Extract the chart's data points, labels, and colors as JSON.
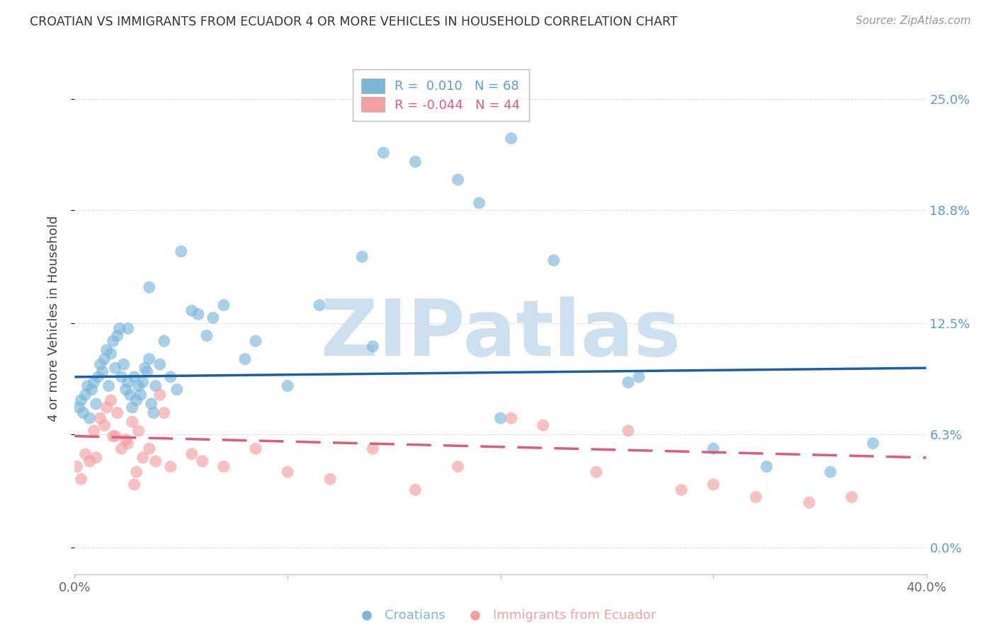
{
  "title": "CROATIAN VS IMMIGRANTS FROM ECUADOR 4 OR MORE VEHICLES IN HOUSEHOLD CORRELATION CHART",
  "source": "Source: ZipAtlas.com",
  "ylabel": "4 or more Vehicles in Household",
  "xlim": [
    0.0,
    40.0
  ],
  "ylim": [
    -1.5,
    27.0
  ],
  "ytick_vals": [
    0.0,
    6.3,
    12.5,
    18.8,
    25.0
  ],
  "ytick_labels_right": [
    "0.0%",
    "6.3%",
    "12.5%",
    "18.8%",
    "25.0%"
  ],
  "xtick_vals": [
    0,
    10,
    20,
    30,
    40
  ],
  "xtick_labels": [
    "0.0%",
    "",
    "",
    "",
    "40.0%"
  ],
  "scatter_blue_color": "#7ab8d9",
  "scatter_pink_color": "#f4a0a0",
  "line_blue_color": "#1a5fa8",
  "line_pink_color": "#e05a7a",
  "right_label_color": "#5b9bd5",
  "watermark_color": "#cce0f0",
  "title_color": "#333333",
  "source_color": "#999999",
  "grid_color": "#dddddd",
  "legend_blue_label": "R =  0.010   N = 68",
  "legend_pink_label": "R = -0.044   N = 44",
  "bottom_legend_croatians": "Croatians",
  "bottom_legend_ecuador": "Immigrants from Ecuador",
  "blue_x": [
    0.2,
    0.3,
    0.4,
    0.5,
    0.6,
    0.7,
    0.8,
    0.9,
    1.0,
    1.1,
    1.2,
    1.3,
    1.4,
    1.5,
    1.6,
    1.7,
    1.8,
    1.9,
    2.0,
    2.1,
    2.2,
    2.3,
    2.4,
    2.5,
    2.6,
    2.7,
    2.8,
    2.9,
    3.0,
    3.1,
    3.2,
    3.3,
    3.4,
    3.5,
    3.6,
    3.7,
    3.8,
    4.0,
    4.2,
    4.5,
    5.0,
    5.5,
    6.5,
    7.0,
    8.5,
    10.0,
    11.5,
    13.5,
    14.5,
    16.0,
    18.0,
    19.0,
    20.5,
    22.5,
    26.0,
    30.0,
    32.5,
    35.5,
    37.5,
    20.0,
    26.5,
    14.0,
    8.0,
    3.5,
    4.8,
    2.5,
    5.8,
    6.2
  ],
  "blue_y": [
    7.8,
    8.2,
    7.5,
    8.5,
    9.0,
    7.2,
    8.8,
    9.2,
    8.0,
    9.5,
    10.2,
    9.8,
    10.5,
    11.0,
    9.0,
    10.8,
    11.5,
    10.0,
    11.8,
    12.2,
    9.5,
    10.2,
    8.8,
    9.2,
    8.5,
    7.8,
    9.5,
    8.2,
    9.0,
    8.5,
    9.2,
    10.0,
    9.8,
    10.5,
    8.0,
    7.5,
    9.0,
    10.2,
    11.5,
    9.5,
    16.5,
    13.2,
    12.8,
    13.5,
    11.5,
    9.0,
    13.5,
    16.2,
    22.0,
    21.5,
    20.5,
    19.2,
    22.8,
    16.0,
    9.2,
    5.5,
    4.5,
    4.2,
    5.8,
    7.2,
    9.5,
    11.2,
    10.5,
    14.5,
    8.8,
    12.2,
    13.0,
    11.8
  ],
  "pink_x": [
    0.1,
    0.3,
    0.5,
    0.7,
    0.9,
    1.0,
    1.2,
    1.4,
    1.5,
    1.7,
    1.9,
    2.0,
    2.2,
    2.4,
    2.5,
    2.7,
    2.9,
    3.0,
    3.2,
    3.5,
    3.8,
    4.0,
    4.5,
    5.5,
    6.0,
    7.0,
    8.5,
    10.0,
    12.0,
    14.0,
    16.0,
    18.0,
    20.5,
    22.0,
    24.5,
    26.0,
    28.5,
    30.0,
    32.0,
    34.5,
    36.5,
    2.8,
    4.2,
    1.8
  ],
  "pink_y": [
    4.5,
    3.8,
    5.2,
    4.8,
    6.5,
    5.0,
    7.2,
    6.8,
    7.8,
    8.2,
    6.2,
    7.5,
    5.5,
    6.0,
    5.8,
    7.0,
    4.2,
    6.5,
    5.0,
    5.5,
    4.8,
    8.5,
    4.5,
    5.2,
    4.8,
    4.5,
    5.5,
    4.2,
    3.8,
    5.5,
    3.2,
    4.5,
    7.2,
    6.8,
    4.2,
    6.5,
    3.2,
    3.5,
    2.8,
    2.5,
    2.8,
    3.5,
    7.5,
    6.2
  ],
  "blue_line_x0": 0.0,
  "blue_line_y0": 9.5,
  "blue_line_x1": 40.0,
  "blue_line_y1": 10.0,
  "pink_line_x0": 0.0,
  "pink_line_y0": 6.2,
  "pink_line_x1": 40.0,
  "pink_line_y1": 5.0
}
